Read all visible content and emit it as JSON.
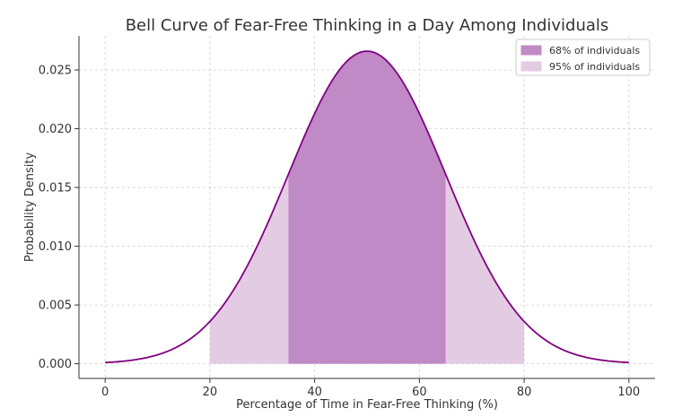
{
  "chart_data": {
    "type": "area",
    "title": "Bell Curve of Fear-Free Thinking in a Day Among Individuals",
    "xlabel": "Percentage of Time in Fear-Free Thinking (%)",
    "ylabel": "Probability Density",
    "xlim": [
      -5,
      105
    ],
    "ylim": [
      -0.00125,
      0.0279
    ],
    "x_ticks": [
      0,
      20,
      40,
      60,
      80,
      100
    ],
    "y_ticks": [
      0.0,
      0.005,
      0.01,
      0.015,
      0.02,
      0.025
    ],
    "y_tick_labels": [
      "0.000",
      "0.005",
      "0.010",
      "0.015",
      "0.020",
      "0.025"
    ],
    "grid": true,
    "legend_position": "top-right",
    "distribution": {
      "kind": "normal",
      "mean": 50,
      "std": 15
    },
    "curve": {
      "x_min": 0,
      "x_max": 100,
      "color": "#800080"
    },
    "bands": [
      {
        "label": "68% of individuals",
        "x_from": 35,
        "x_to": 65,
        "color": "#c08ac6"
      },
      {
        "label": "95% of individuals",
        "x_from": 20,
        "x_to": 80,
        "color": "#e3cbe4"
      }
    ]
  }
}
